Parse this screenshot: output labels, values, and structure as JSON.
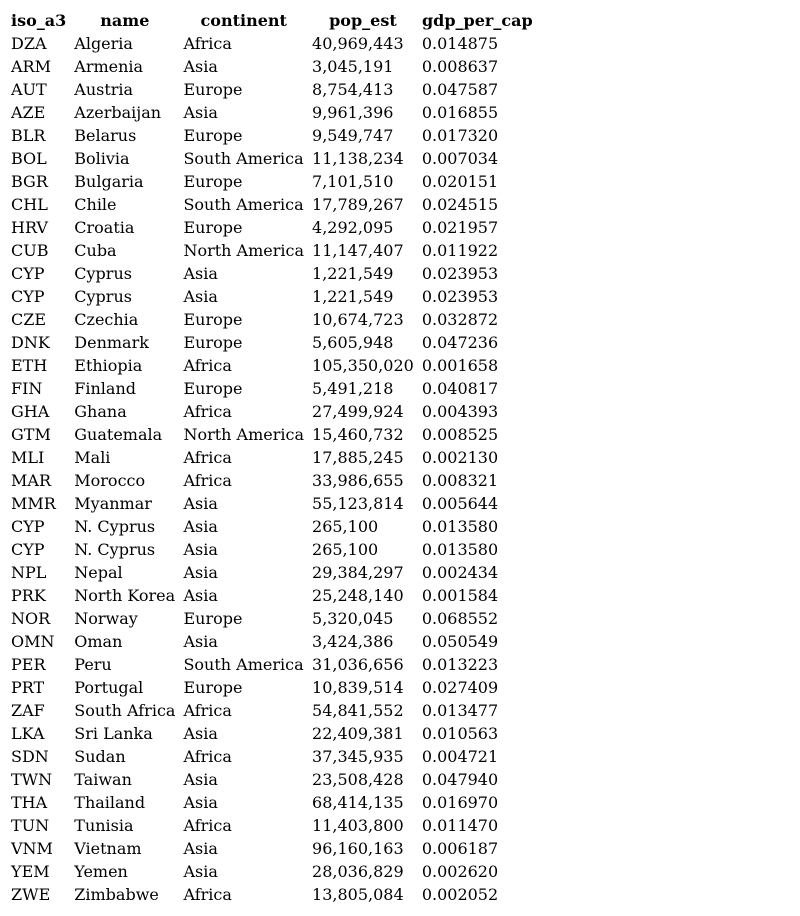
{
  "table": {
    "headers": [
      "iso_a3",
      "name",
      "continent",
      "pop_est",
      "gdp_per_cap"
    ],
    "rows": [
      [
        "DZA",
        "Algeria",
        "Africa",
        "40,969,443",
        "0.014875"
      ],
      [
        "ARM",
        "Armenia",
        "Asia",
        "3,045,191",
        "0.008637"
      ],
      [
        "AUT",
        "Austria",
        "Europe",
        "8,754,413",
        "0.047587"
      ],
      [
        "AZE",
        "Azerbaijan",
        "Asia",
        "9,961,396",
        "0.016855"
      ],
      [
        "BLR",
        "Belarus",
        "Europe",
        "9,549,747",
        "0.017320"
      ],
      [
        "BOL",
        "Bolivia",
        "South America",
        "11,138,234",
        "0.007034"
      ],
      [
        "BGR",
        "Bulgaria",
        "Europe",
        "7,101,510",
        "0.020151"
      ],
      [
        "CHL",
        "Chile",
        "South America",
        "17,789,267",
        "0.024515"
      ],
      [
        "HRV",
        "Croatia",
        "Europe",
        "4,292,095",
        "0.021957"
      ],
      [
        "CUB",
        "Cuba",
        "North America",
        "11,147,407",
        "0.011922"
      ],
      [
        "CYP",
        "Cyprus",
        "Asia",
        "1,221,549",
        "0.023953"
      ],
      [
        "CYP",
        "Cyprus",
        "Asia",
        "1,221,549",
        "0.023953"
      ],
      [
        "CZE",
        "Czechia",
        "Europe",
        "10,674,723",
        "0.032872"
      ],
      [
        "DNK",
        "Denmark",
        "Europe",
        "5,605,948",
        "0.047236"
      ],
      [
        "ETH",
        "Ethiopia",
        "Africa",
        "105,350,020",
        "0.001658"
      ],
      [
        "FIN",
        "Finland",
        "Europe",
        "5,491,218",
        "0.040817"
      ],
      [
        "GHA",
        "Ghana",
        "Africa",
        "27,499,924",
        "0.004393"
      ],
      [
        "GTM",
        "Guatemala",
        "North America",
        "15,460,732",
        "0.008525"
      ],
      [
        "MLI",
        "Mali",
        "Africa",
        "17,885,245",
        "0.002130"
      ],
      [
        "MAR",
        "Morocco",
        "Africa",
        "33,986,655",
        "0.008321"
      ],
      [
        "MMR",
        "Myanmar",
        "Asia",
        "55,123,814",
        "0.005644"
      ],
      [
        "CYP",
        "N. Cyprus",
        "Asia",
        "265,100",
        "0.013580"
      ],
      [
        "CYP",
        "N. Cyprus",
        "Asia",
        "265,100",
        "0.013580"
      ],
      [
        "NPL",
        "Nepal",
        "Asia",
        "29,384,297",
        "0.002434"
      ],
      [
        "PRK",
        "North Korea",
        "Asia",
        "25,248,140",
        "0.001584"
      ],
      [
        "NOR",
        "Norway",
        "Europe",
        "5,320,045",
        "0.068552"
      ],
      [
        "OMN",
        "Oman",
        "Asia",
        "3,424,386",
        "0.050549"
      ],
      [
        "PER",
        "Peru",
        "South America",
        "31,036,656",
        "0.013223"
      ],
      [
        "PRT",
        "Portugal",
        "Europe",
        "10,839,514",
        "0.027409"
      ],
      [
        "ZAF",
        "South Africa",
        "Africa",
        "54,841,552",
        "0.013477"
      ],
      [
        "LKA",
        "Sri Lanka",
        "Asia",
        "22,409,381",
        "0.010563"
      ],
      [
        "SDN",
        "Sudan",
        "Africa",
        "37,345,935",
        "0.004721"
      ],
      [
        "TWN",
        "Taiwan",
        "Asia",
        "23,508,428",
        "0.047940"
      ],
      [
        "THA",
        "Thailand",
        "Asia",
        "68,414,135",
        "0.016970"
      ],
      [
        "TUN",
        "Tunisia",
        "Africa",
        "11,403,800",
        "0.011470"
      ],
      [
        "VNM",
        "Vietnam",
        "Asia",
        "96,160,163",
        "0.006187"
      ],
      [
        "YEM",
        "Yemen",
        "Asia",
        "28,036,829",
        "0.002620"
      ],
      [
        "ZWE",
        "Zimbabwe",
        "Africa",
        "13,805,084",
        "0.002052"
      ]
    ]
  }
}
